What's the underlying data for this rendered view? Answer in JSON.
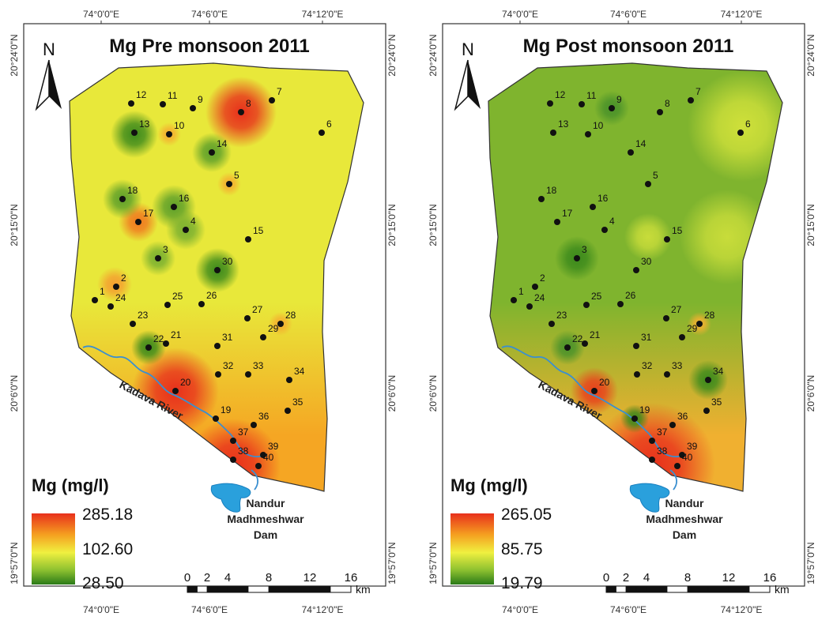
{
  "panels": [
    {
      "title": "Mg Pre monsoon 2011",
      "legend": {
        "title": "Mg (mg/l)",
        "values": [
          "285.18",
          "102.60",
          "28.50"
        ]
      }
    },
    {
      "title": "Mg Post monsoon 2011",
      "legend": {
        "title": "Mg (mg/l)",
        "values": [
          "265.05",
          "85.75",
          "19.79"
        ]
      }
    }
  ],
  "lon_labels": [
    "74°0'0\"E",
    "74°6'0\"E",
    "74°12'0\"E"
  ],
  "lat_labels": [
    "20°24'0\"N",
    "20°15'0\"N",
    "20°6'0\"N",
    "19°57'0\"N"
  ],
  "north": "N",
  "scale": {
    "labels": [
      "0",
      "2",
      "4",
      "8",
      "12",
      "16"
    ],
    "unit": "km"
  },
  "river": "Kadava River",
  "dam": [
    "Nandur",
    "Madhmeshwar",
    "Dam"
  ],
  "stations": [
    "1",
    "2",
    "3",
    "4",
    "5",
    "6",
    "7",
    "8",
    "9",
    "10",
    "11",
    "12",
    "13",
    "14",
    "15",
    "16",
    "17",
    "18",
    "19",
    "20",
    "21",
    "22",
    "23",
    "24",
    "25",
    "26",
    "27",
    "28",
    "29",
    "30",
    "31",
    "32",
    "33",
    "34",
    "35",
    "36",
    "37",
    "38",
    "39",
    "40"
  ]
}
